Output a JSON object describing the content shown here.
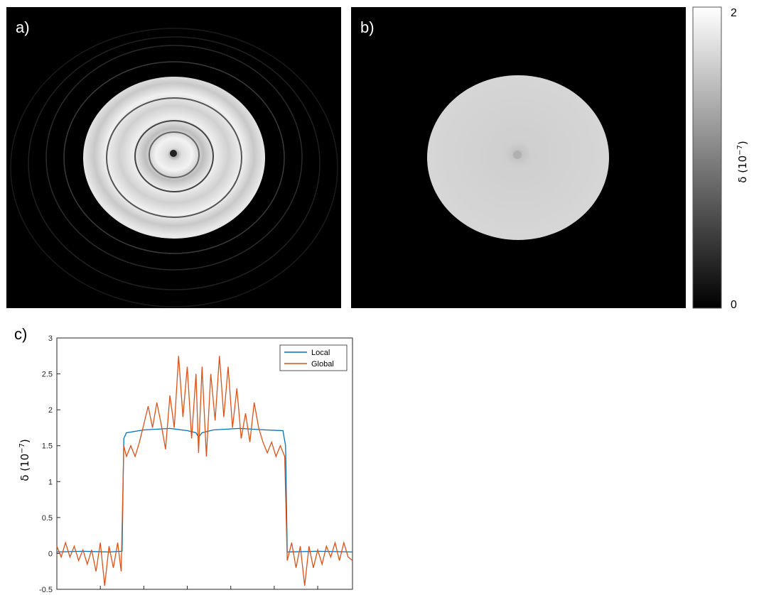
{
  "panels": {
    "a": {
      "label": "a)"
    },
    "b": {
      "label": "b)"
    },
    "c": {
      "label": "c)"
    }
  },
  "colorbar": {
    "max_label": "2",
    "min_label": "0",
    "title": "δ (10",
    "title_exp": "−7",
    "title_close": ")",
    "colormap": "gray"
  },
  "colors": {
    "local": "#0072BD",
    "global": "#D95319",
    "background": "#000000"
  },
  "chart_data": [
    {
      "type": "heatmap",
      "panel": "a",
      "description_label": "a)",
      "colormap": "gray",
      "clim": [
        0,
        2
      ]
    },
    {
      "type": "heatmap",
      "panel": "b",
      "description_label": "b)",
      "colormap": "gray",
      "clim": [
        0,
        2
      ]
    },
    {
      "type": "line",
      "panel": "c",
      "title": "",
      "xlabel": "",
      "ylabel": "δ (10",
      "ylabel_exp": "−7",
      "ylabel_close": ")",
      "xlim": [
        0,
        340
      ],
      "ylim": [
        -0.5,
        3
      ],
      "yticks": [
        -0.5,
        0,
        0.5,
        1,
        1.5,
        2,
        2.5,
        3
      ],
      "ytick_labels": [
        "-0.5",
        "0",
        "0.5",
        "1",
        "1.5",
        "2",
        "2.5",
        "3"
      ],
      "xticks": [
        0,
        50,
        100,
        150,
        200,
        250,
        300,
        340
      ],
      "grid": false,
      "legend_position": "top-right",
      "series": [
        {
          "name": "Local",
          "color": "#0072BD",
          "points": [
            [
              0,
              0.02
            ],
            [
              30,
              0.03
            ],
            [
              60,
              0.02
            ],
            [
              75,
              0.03
            ],
            [
              77,
              1.6
            ],
            [
              80,
              1.68
            ],
            [
              100,
              1.72
            ],
            [
              130,
              1.74
            ],
            [
              150,
              1.71
            ],
            [
              160,
              1.68
            ],
            [
              163,
              1.62
            ],
            [
              167,
              1.68
            ],
            [
              180,
              1.72
            ],
            [
              210,
              1.74
            ],
            [
              240,
              1.72
            ],
            [
              260,
              1.71
            ],
            [
              263,
              1.5
            ],
            [
              265,
              0.02
            ],
            [
              300,
              0.03
            ],
            [
              340,
              0.02
            ]
          ]
        },
        {
          "name": "Global",
          "color": "#D95319",
          "points": [
            [
              0,
              0.1
            ],
            [
              5,
              -0.05
            ],
            [
              10,
              0.15
            ],
            [
              15,
              -0.05
            ],
            [
              20,
              0.1
            ],
            [
              25,
              -0.1
            ],
            [
              30,
              0.05
            ],
            [
              35,
              -0.15
            ],
            [
              40,
              0.05
            ],
            [
              45,
              -0.25
            ],
            [
              50,
              0.15
            ],
            [
              55,
              -0.45
            ],
            [
              60,
              0.1
            ],
            [
              65,
              -0.2
            ],
            [
              70,
              0.15
            ],
            [
              74,
              -0.25
            ],
            [
              77,
              1.5
            ],
            [
              80,
              1.35
            ],
            [
              85,
              1.5
            ],
            [
              90,
              1.35
            ],
            [
              95,
              1.55
            ],
            [
              100,
              1.8
            ],
            [
              105,
              2.05
            ],
            [
              110,
              1.75
            ],
            [
              115,
              2.1
            ],
            [
              120,
              1.8
            ],
            [
              125,
              1.45
            ],
            [
              130,
              2.2
            ],
            [
              135,
              1.75
            ],
            [
              140,
              2.75
            ],
            [
              145,
              1.9
            ],
            [
              150,
              2.6
            ],
            [
              155,
              1.6
            ],
            [
              160,
              2.5
            ],
            [
              163,
              1.4
            ],
            [
              167,
              2.6
            ],
            [
              172,
              1.35
            ],
            [
              177,
              2.5
            ],
            [
              182,
              1.85
            ],
            [
              187,
              2.75
            ],
            [
              192,
              1.9
            ],
            [
              197,
              2.6
            ],
            [
              202,
              1.75
            ],
            [
              207,
              2.3
            ],
            [
              212,
              1.6
            ],
            [
              217,
              1.95
            ],
            [
              222,
              1.55
            ],
            [
              227,
              2.1
            ],
            [
              232,
              1.75
            ],
            [
              237,
              1.55
            ],
            [
              242,
              1.4
            ],
            [
              247,
              1.55
            ],
            [
              252,
              1.35
            ],
            [
              257,
              1.5
            ],
            [
              262,
              1.35
            ],
            [
              265,
              -0.1
            ],
            [
              270,
              0.15
            ],
            [
              275,
              -0.2
            ],
            [
              280,
              0.1
            ],
            [
              285,
              -0.45
            ],
            [
              290,
              0.1
            ],
            [
              295,
              -0.2
            ],
            [
              300,
              0.05
            ],
            [
              305,
              -0.15
            ],
            [
              310,
              0.1
            ],
            [
              315,
              -0.05
            ],
            [
              320,
              0.15
            ],
            [
              325,
              -0.1
            ],
            [
              330,
              0.15
            ],
            [
              335,
              -0.05
            ],
            [
              340,
              -0.1
            ]
          ]
        }
      ]
    }
  ]
}
